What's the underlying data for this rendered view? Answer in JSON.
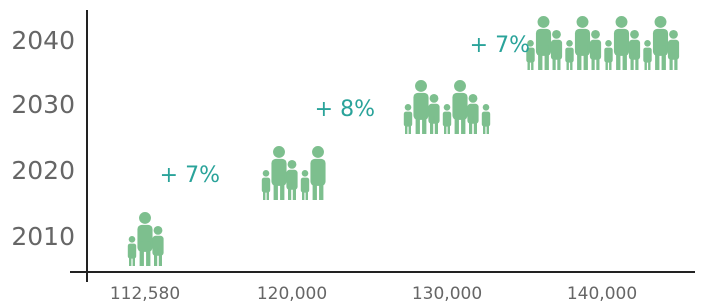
{
  "chart_data": {
    "type": "pictogram",
    "categories": [
      "2010",
      "2020",
      "2030",
      "2040"
    ],
    "values": [
      112580,
      120000,
      130000,
      140000
    ],
    "value_labels": [
      "112,580",
      "120,000",
      "130,000",
      "140,000"
    ],
    "annotations": [
      "+ 7%",
      "+ 8%",
      "+ 7%"
    ],
    "color": "#7dbf8e",
    "annotation_color": "#2aa39a"
  }
}
